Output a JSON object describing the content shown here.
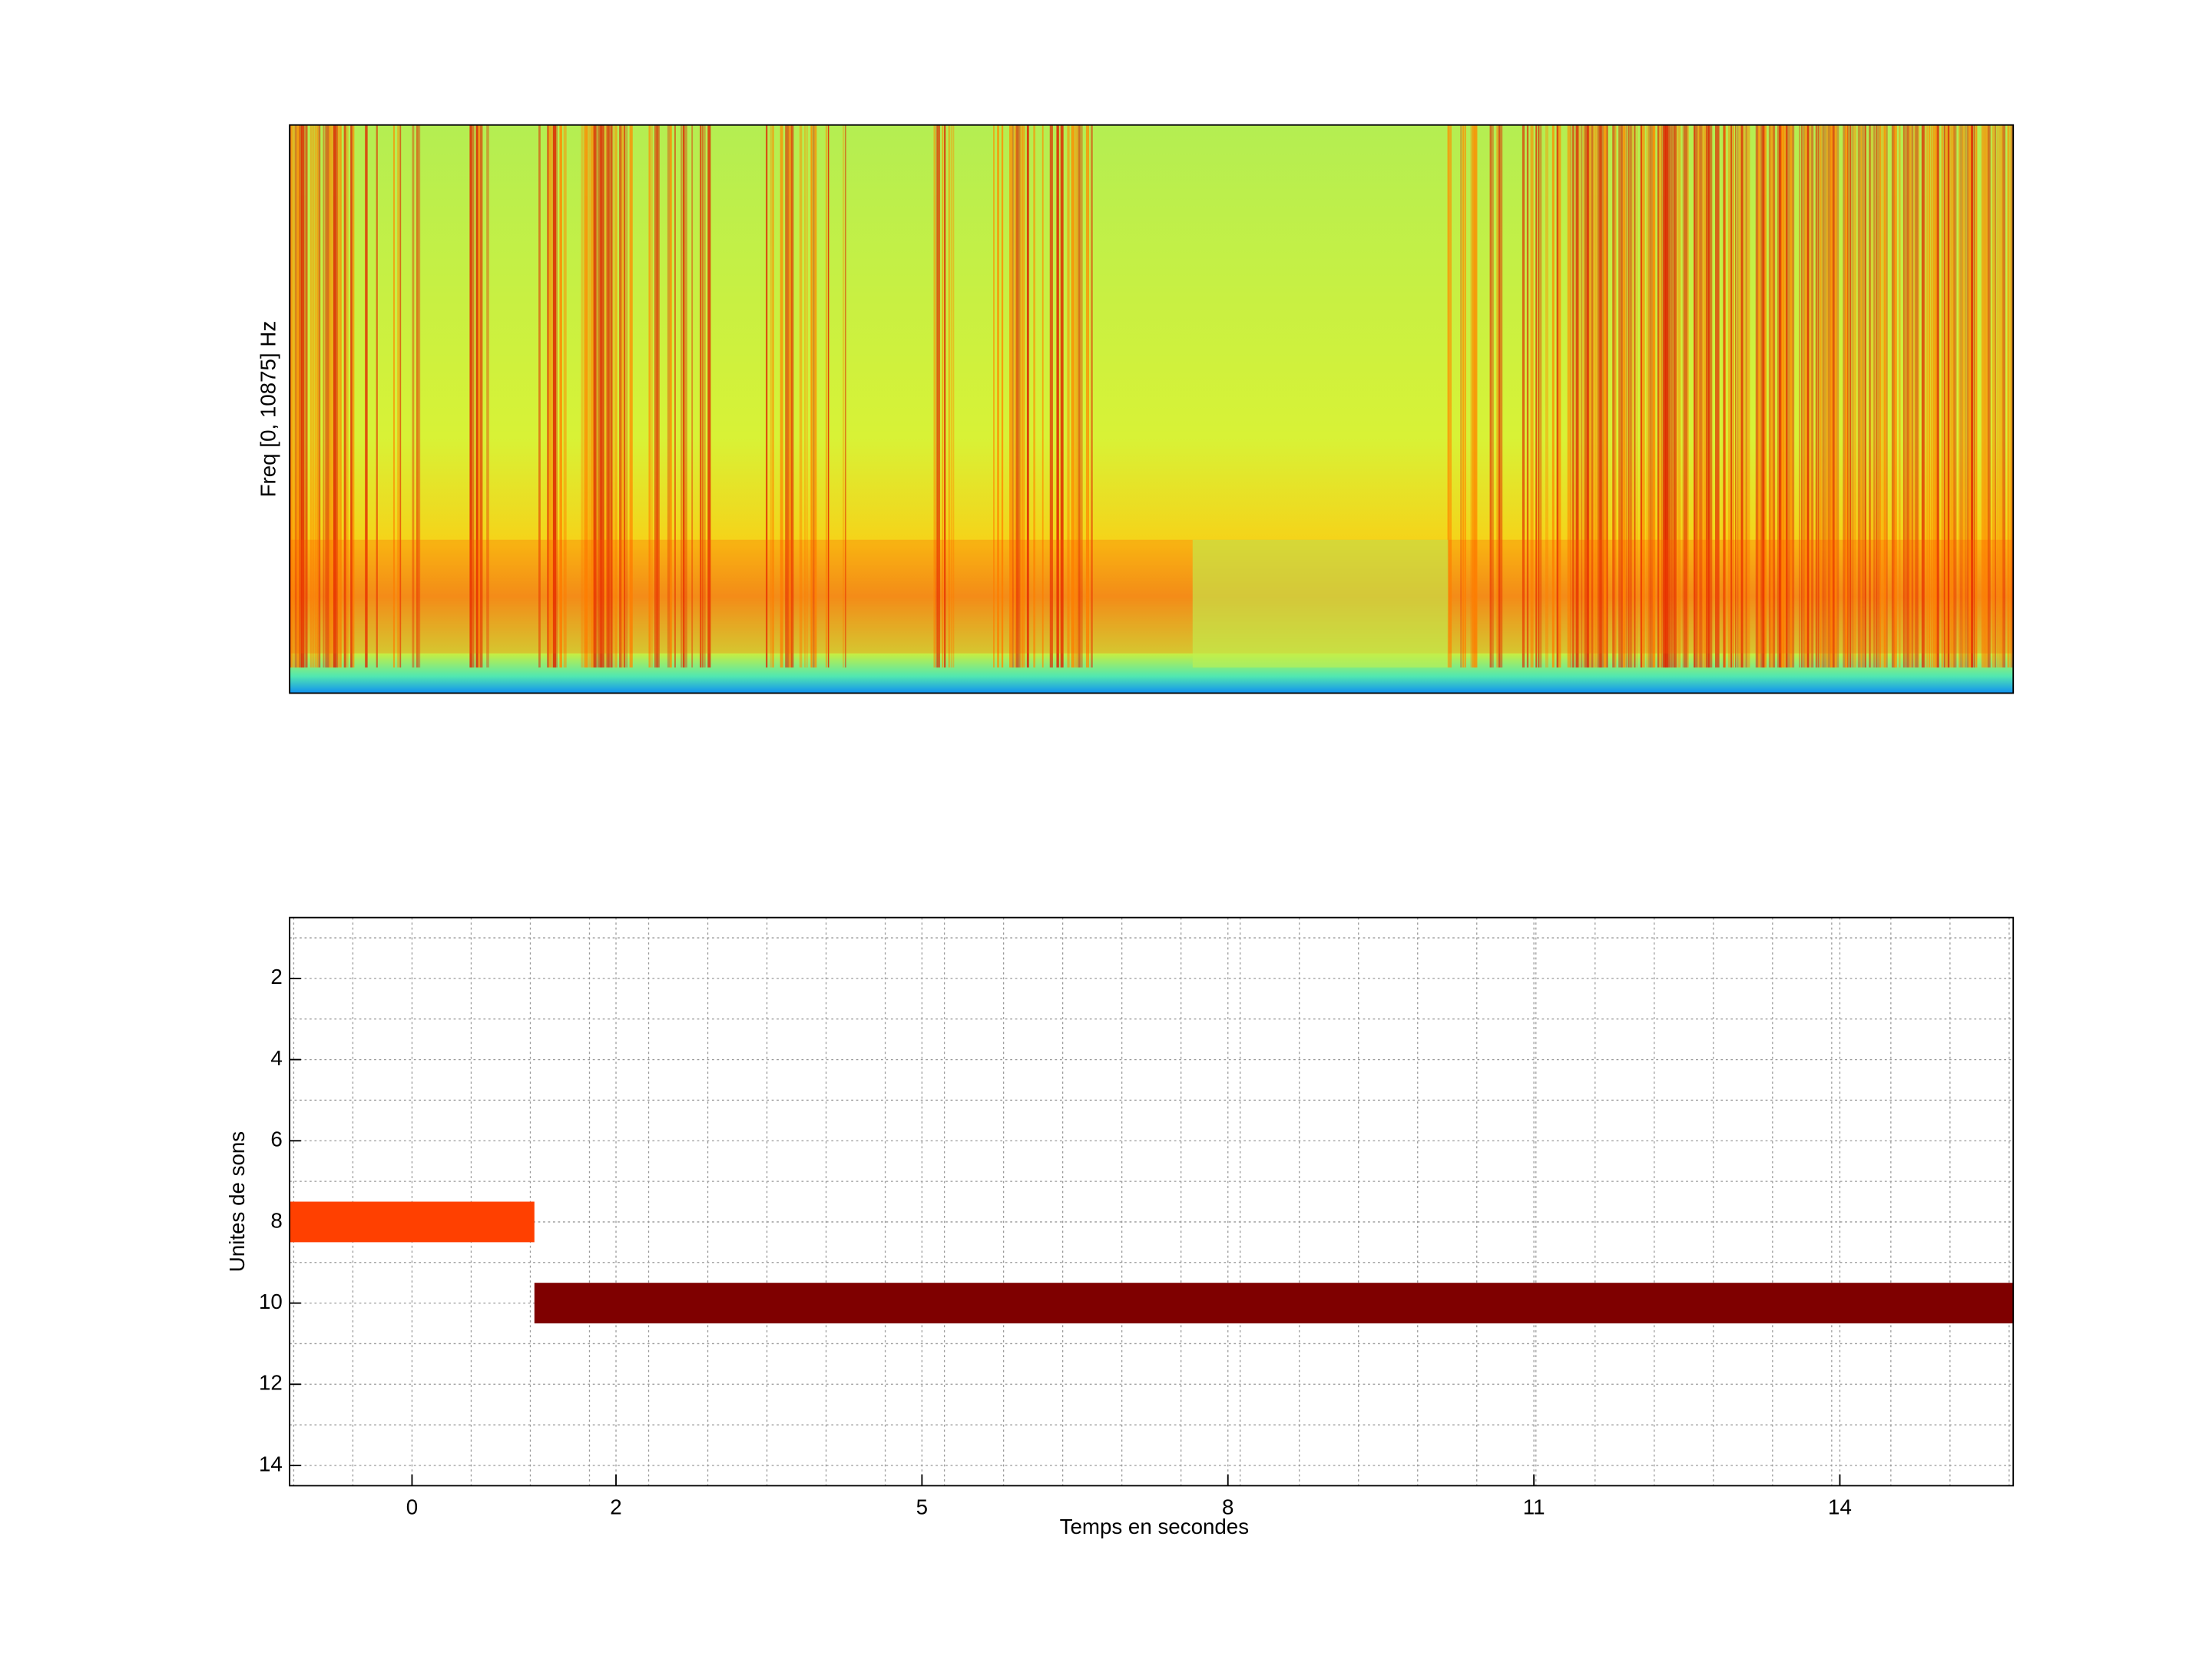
{
  "chart_data": [
    {
      "type": "spectrogram",
      "ylabel": "Freq [0, 10875] Hz"
    },
    {
      "type": "timeline",
      "xlabel": "Temps en secondes",
      "ylabel": "Unites de sons",
      "xlim": [
        -1.2,
        15.7
      ],
      "xticks": [
        0,
        2,
        5,
        8,
        11,
        14
      ],
      "x_minor_ticks": [
        -1.16,
        -0.58,
        0.58,
        1.16,
        1.74,
        2.32,
        2.9,
        3.48,
        4.06,
        4.64,
        5.22,
        5.8,
        6.38,
        6.96,
        7.54,
        8.12,
        8.7,
        9.28,
        9.86,
        10.44,
        11.02,
        11.6,
        12.18,
        12.76,
        13.34,
        13.92,
        14.5,
        15.08,
        15.66
      ],
      "ylim": [
        0.5,
        14.5
      ],
      "y_reversed": true,
      "yticks": [
        2,
        4,
        6,
        8,
        10,
        12,
        14
      ],
      "y_minor_ticks": [
        1,
        3,
        5,
        7,
        9,
        11,
        13
      ],
      "grid": true,
      "segments": [
        {
          "unit": 8,
          "start": -1.2,
          "end": 1.2,
          "color": "#ff4000"
        },
        {
          "unit": 10,
          "start": 1.2,
          "end": 15.7,
          "color": "#7f0000"
        }
      ]
    }
  ]
}
